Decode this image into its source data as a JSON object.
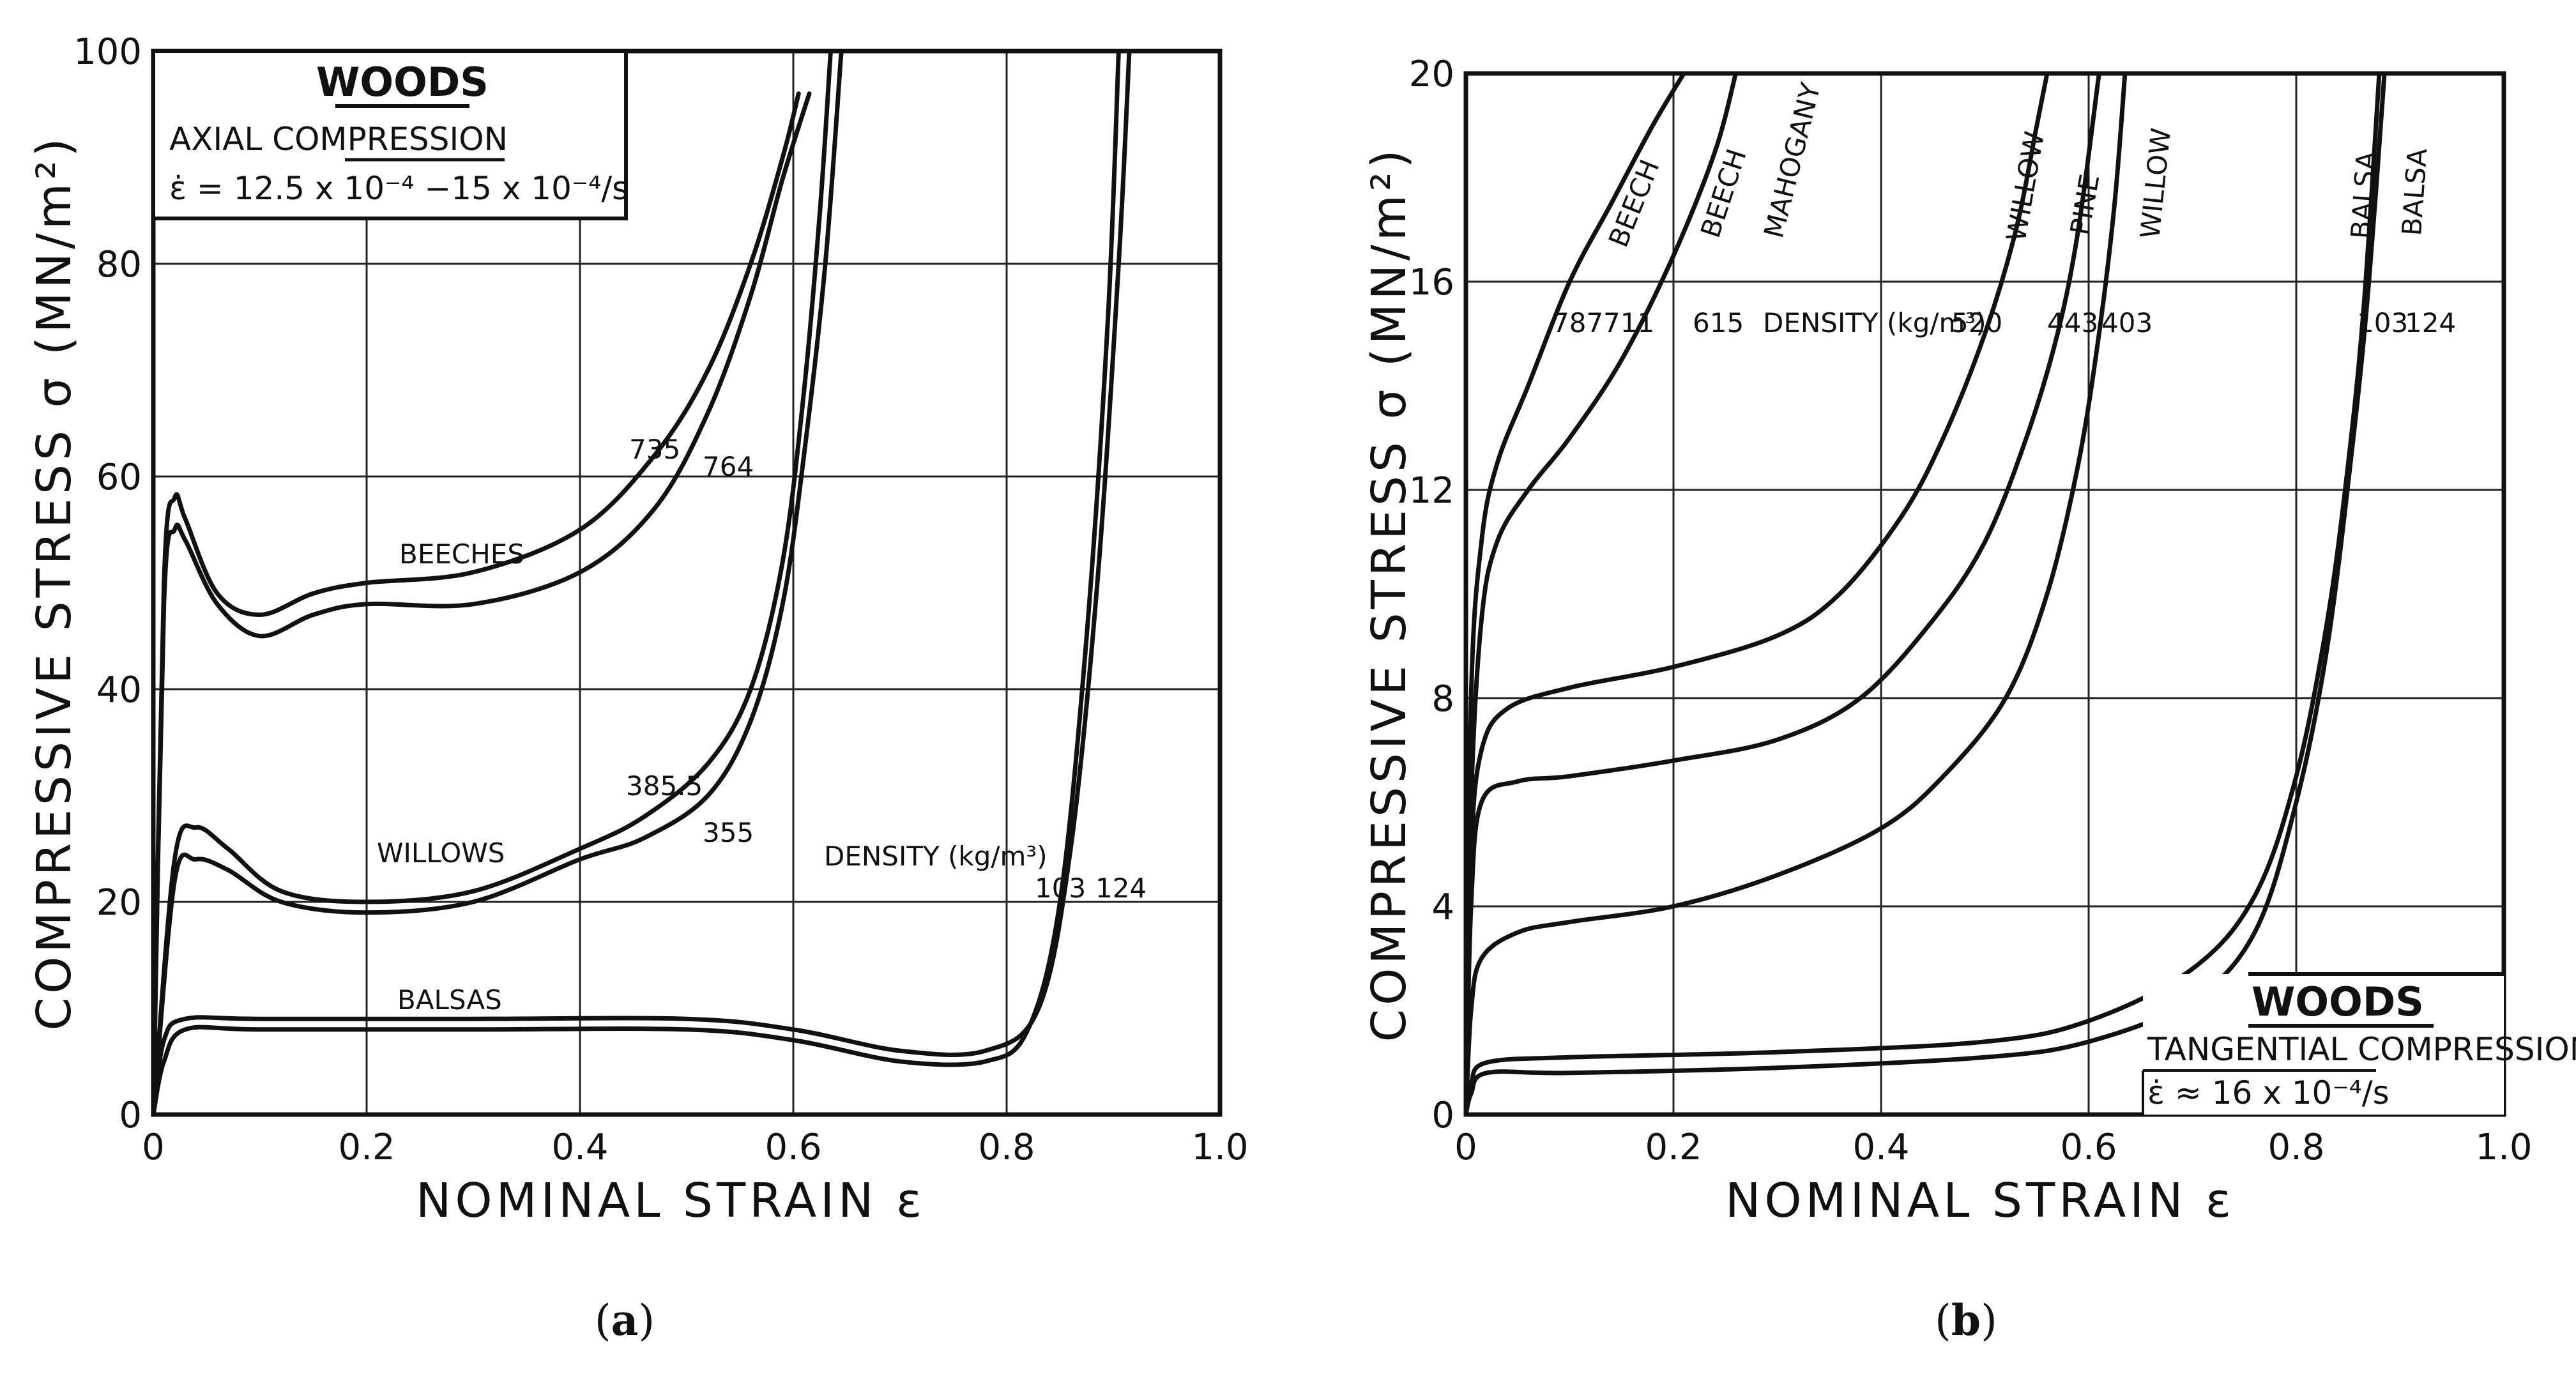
{
  "chart_data": [
    {
      "type": "line",
      "panel": "a",
      "caption": "(a)",
      "caption_letter": "a",
      "legend": {
        "title": "WOODS",
        "line1": "AXIAL COMPRESSION",
        "line2": "ε̇ = 12.5 x 10⁻⁴ −15 x 10⁻⁴/s"
      },
      "xlabel": "NOMINAL STRAIN ε",
      "ylabel": "COMPRESSIVE STRESS σ (MN/m²)",
      "xlim": [
        0,
        1.0
      ],
      "ylim": [
        0,
        100
      ],
      "xticks": [
        "0",
        "0.2",
        "0.4",
        "0.6",
        "0.8",
        "1.0"
      ],
      "yticks": [
        "0",
        "20",
        "40",
        "60",
        "80",
        "100"
      ],
      "annotations": {
        "beeches": "BEECHES",
        "willows": "WILLOWS",
        "balsas": "BALSAS",
        "d735": "735",
        "d764": "764",
        "d3855": "385.5",
        "d355": "355",
        "density": "DENSITY (kg/m³)",
        "d103": "103",
        "d124": "124"
      },
      "series": [
        {
          "name": "Beech 735",
          "points": [
            [
              0,
              0
            ],
            [
              0.01,
              50
            ],
            [
              0.02,
              58
            ],
            [
              0.03,
              56
            ],
            [
              0.06,
              49
            ],
            [
              0.1,
              47
            ],
            [
              0.15,
              49
            ],
            [
              0.2,
              50
            ],
            [
              0.3,
              51
            ],
            [
              0.4,
              55
            ],
            [
              0.47,
              62
            ],
            [
              0.52,
              70
            ],
            [
              0.56,
              80
            ],
            [
              0.59,
              90
            ],
            [
              0.605,
              96
            ]
          ]
        },
        {
          "name": "Beech 764",
          "points": [
            [
              0,
              0
            ],
            [
              0.01,
              48
            ],
            [
              0.02,
              55
            ],
            [
              0.03,
              54
            ],
            [
              0.06,
              48
            ],
            [
              0.1,
              45
            ],
            [
              0.15,
              47
            ],
            [
              0.2,
              48
            ],
            [
              0.3,
              48
            ],
            [
              0.4,
              51
            ],
            [
              0.47,
              57
            ],
            [
              0.52,
              66
            ],
            [
              0.56,
              77
            ],
            [
              0.59,
              88
            ],
            [
              0.615,
              96
            ]
          ]
        },
        {
          "name": "Willow 385.5",
          "points": [
            [
              0,
              0
            ],
            [
              0.02,
              24
            ],
            [
              0.04,
              27
            ],
            [
              0.07,
              25
            ],
            [
              0.12,
              21
            ],
            [
              0.2,
              20
            ],
            [
              0.3,
              21
            ],
            [
              0.4,
              25
            ],
            [
              0.46,
              28
            ],
            [
              0.52,
              33
            ],
            [
              0.56,
              40
            ],
            [
              0.59,
              52
            ],
            [
              0.61,
              68
            ],
            [
              0.625,
              85
            ],
            [
              0.635,
              100
            ]
          ]
        },
        {
          "name": "Willow 355",
          "points": [
            [
              0,
              0
            ],
            [
              0.02,
              22
            ],
            [
              0.04,
              24
            ],
            [
              0.07,
              23
            ],
            [
              0.12,
              20
            ],
            [
              0.2,
              19
            ],
            [
              0.3,
              20
            ],
            [
              0.4,
              24
            ],
            [
              0.46,
              26
            ],
            [
              0.52,
              30
            ],
            [
              0.56,
              37
            ],
            [
              0.59,
              48
            ],
            [
              0.61,
              62
            ],
            [
              0.63,
              80
            ],
            [
              0.645,
              100
            ]
          ]
        },
        {
          "name": "Balsa 103",
          "points": [
            [
              0,
              0
            ],
            [
              0.01,
              5
            ],
            [
              0.03,
              8
            ],
            [
              0.1,
              8
            ],
            [
              0.3,
              8
            ],
            [
              0.5,
              8
            ],
            [
              0.6,
              7
            ],
            [
              0.7,
              5
            ],
            [
              0.78,
              5
            ],
            [
              0.82,
              8
            ],
            [
              0.85,
              20
            ],
            [
              0.875,
              45
            ],
            [
              0.895,
              75
            ],
            [
              0.905,
              100
            ]
          ]
        },
        {
          "name": "Balsa 124",
          "points": [
            [
              0,
              0
            ],
            [
              0.01,
              7
            ],
            [
              0.03,
              9
            ],
            [
              0.1,
              9
            ],
            [
              0.3,
              9
            ],
            [
              0.5,
              9
            ],
            [
              0.6,
              8
            ],
            [
              0.7,
              6
            ],
            [
              0.78,
              6
            ],
            [
              0.83,
              10
            ],
            [
              0.86,
              25
            ],
            [
              0.885,
              50
            ],
            [
              0.905,
              80
            ],
            [
              0.915,
              100
            ]
          ]
        }
      ]
    },
    {
      "type": "line",
      "panel": "b",
      "caption": "(b)",
      "caption_letter": "b",
      "legend": {
        "title": "WOODS",
        "line1": "TANGENTIAL COMPRESSION",
        "line2": "ε̇ ≈ 16 x 10⁻⁴/s"
      },
      "xlabel": "NOMINAL STRAIN ε",
      "ylabel": "COMPRESSIVE STRESS σ (MN/m²)",
      "xlim": [
        0,
        1.0
      ],
      "ylim": [
        0,
        20
      ],
      "xticks": [
        "0",
        "0.2",
        "0.4",
        "0.6",
        "0.8",
        "1.0"
      ],
      "yticks": [
        "0",
        "4",
        "8",
        "12",
        "16",
        "20"
      ],
      "annotations": {
        "beech1": "BEECH",
        "beech2": "BEECH",
        "mahogany": "MAHOGANY",
        "willow1": "WILLOW",
        "pine": "PINE",
        "willow2": "WILLOW",
        "balsa1": "BALSA",
        "balsa2": "BALSA",
        "d787": "787",
        "d711": "711",
        "d615": "615",
        "density": "DENSITY (kg/m³)",
        "d520": "520",
        "d443": "443",
        "d403": "403",
        "d103": "103",
        "d124": "124"
      },
      "series": [
        {
          "name": "Beech 787",
          "points": [
            [
              0,
              0
            ],
            [
              0.005,
              8
            ],
            [
              0.015,
              11
            ],
            [
              0.03,
              12.5
            ],
            [
              0.06,
              14
            ],
            [
              0.1,
              16
            ],
            [
              0.14,
              17.5
            ],
            [
              0.18,
              19
            ],
            [
              0.21,
              20
            ]
          ]
        },
        {
          "name": "Beech 711",
          "points": [
            [
              0,
              0
            ],
            [
              0.005,
              6
            ],
            [
              0.015,
              9.5
            ],
            [
              0.03,
              11
            ],
            [
              0.06,
              12
            ],
            [
              0.1,
              13
            ],
            [
              0.15,
              14.5
            ],
            [
              0.2,
              16.5
            ],
            [
              0.24,
              18.5
            ],
            [
              0.26,
              20
            ]
          ]
        },
        {
          "name": "Mahogany 615",
          "points": [
            [
              0,
              0
            ],
            [
              0.005,
              5
            ],
            [
              0.015,
              7
            ],
            [
              0.04,
              7.8
            ],
            [
              0.1,
              8.2
            ],
            [
              0.2,
              8.6
            ],
            [
              0.3,
              9.2
            ],
            [
              0.36,
              10
            ],
            [
              0.42,
              11.5
            ],
            [
              0.46,
              13
            ],
            [
              0.5,
              15
            ],
            [
              0.53,
              17
            ],
            [
              0.55,
              19
            ],
            [
              0.56,
              20
            ]
          ]
        },
        {
          "name": "Willow 520",
          "points": [
            [
              0,
              0
            ],
            [
              0.005,
              4
            ],
            [
              0.015,
              6
            ],
            [
              0.05,
              6.4
            ],
            [
              0.1,
              6.5
            ],
            [
              0.2,
              6.8
            ],
            [
              0.3,
              7.2
            ],
            [
              0.38,
              8
            ],
            [
              0.45,
              9.5
            ],
            [
              0.5,
              11
            ],
            [
              0.54,
              13
            ],
            [
              0.57,
              15
            ],
            [
              0.59,
              17
            ],
            [
              0.61,
              20
            ]
          ]
        },
        {
          "name": "Pine 443",
          "points": [
            [
              0,
              0
            ],
            [
              0.005,
              2
            ],
            [
              0.015,
              3
            ],
            [
              0.05,
              3.5
            ],
            [
              0.1,
              3.7
            ],
            [
              0.2,
              4
            ],
            [
              0.3,
              4.6
            ],
            [
              0.4,
              5.5
            ],
            [
              0.46,
              6.5
            ],
            [
              0.52,
              8
            ],
            [
              0.56,
              10
            ],
            [
              0.59,
              12.5
            ],
            [
              0.61,
              15
            ],
            [
              0.625,
              17.5
            ],
            [
              0.635,
              20
            ]
          ]
        },
        {
          "name": "Balsa 103",
          "points": [
            [
              0,
              0
            ],
            [
              0.005,
              0.4
            ],
            [
              0.02,
              0.8
            ],
            [
              0.1,
              0.8
            ],
            [
              0.3,
              0.9
            ],
            [
              0.5,
              1.1
            ],
            [
              0.6,
              1.4
            ],
            [
              0.7,
              2.2
            ],
            [
              0.76,
              3.5
            ],
            [
              0.8,
              6
            ],
            [
              0.83,
              9
            ],
            [
              0.855,
              13
            ],
            [
              0.87,
              16
            ],
            [
              0.885,
              20
            ]
          ]
        },
        {
          "name": "Balsa 124",
          "points": [
            [
              0,
              0
            ],
            [
              0.005,
              0.6
            ],
            [
              0.02,
              1
            ],
            [
              0.1,
              1.1
            ],
            [
              0.3,
              1.2
            ],
            [
              0.5,
              1.4
            ],
            [
              0.6,
              1.8
            ],
            [
              0.7,
              2.8
            ],
            [
              0.76,
              4.2
            ],
            [
              0.8,
              6.5
            ],
            [
              0.83,
              9.5
            ],
            [
              0.85,
              12.5
            ],
            [
              0.865,
              15.5
            ],
            [
              0.88,
              20
            ]
          ]
        }
      ]
    }
  ]
}
